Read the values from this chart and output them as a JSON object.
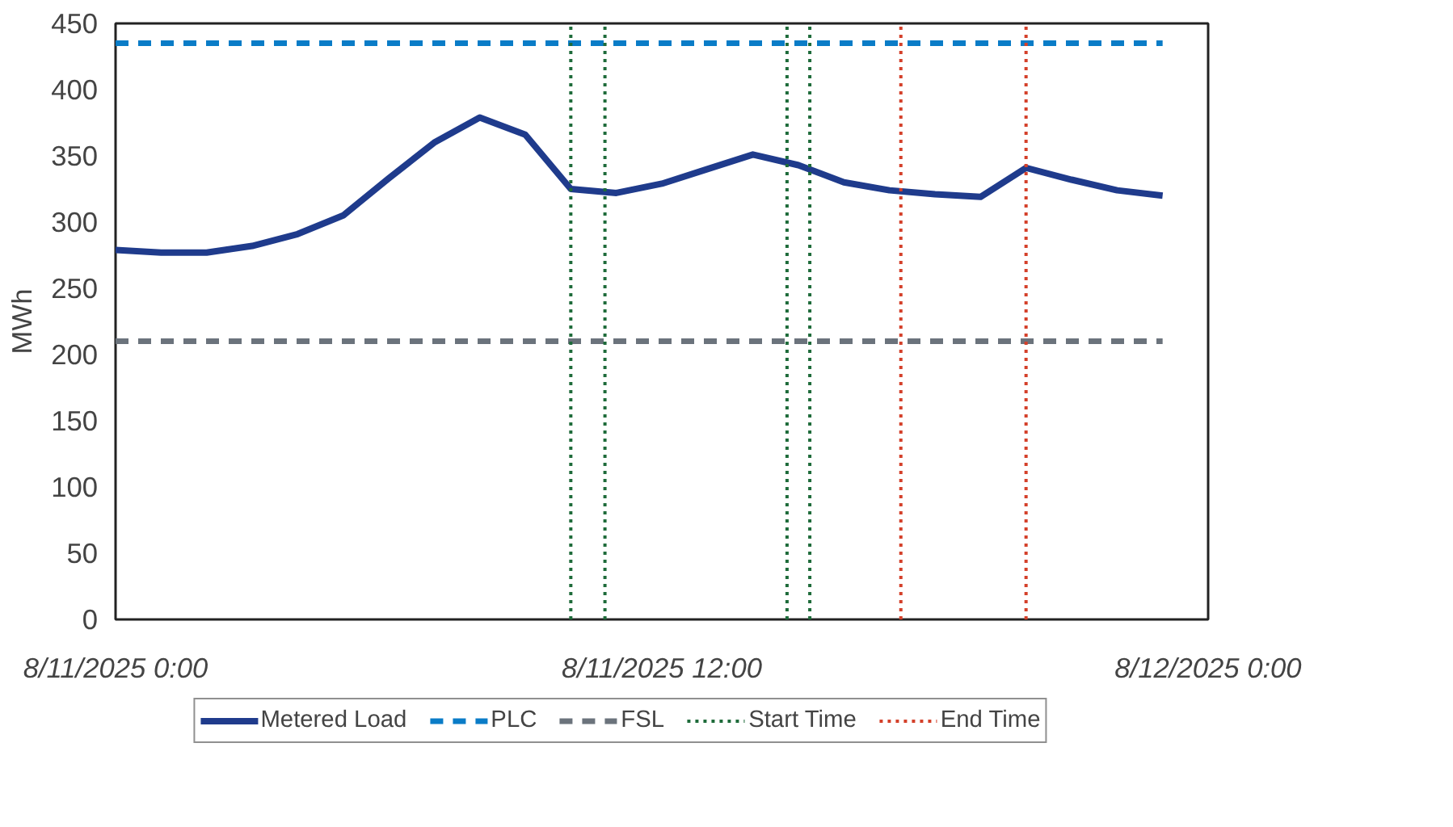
{
  "chart_data": {
    "type": "line",
    "ylabel": "MWh",
    "x": [
      "2025-08-11T00:00",
      "2025-08-11T01:00",
      "2025-08-11T02:00",
      "2025-08-11T03:00",
      "2025-08-11T04:00",
      "2025-08-11T05:00",
      "2025-08-11T06:00",
      "2025-08-11T07:00",
      "2025-08-11T08:00",
      "2025-08-11T09:00",
      "2025-08-11T10:00",
      "2025-08-11T11:00",
      "2025-08-11T12:00",
      "2025-08-11T13:00",
      "2025-08-11T14:00",
      "2025-08-11T15:00",
      "2025-08-11T16:00",
      "2025-08-11T17:00",
      "2025-08-11T18:00",
      "2025-08-11T19:00",
      "2025-08-11T20:00",
      "2025-08-11T21:00",
      "2025-08-11T22:00",
      "2025-08-11T23:00"
    ],
    "series": [
      {
        "name": "Metered Load",
        "color": "#1f3b8c",
        "line_style": "solid",
        "values": [
          279,
          277,
          277,
          282,
          291,
          305,
          333,
          360,
          379,
          366,
          325,
          322,
          329,
          340,
          351,
          343,
          330,
          324,
          321,
          319,
          341,
          332,
          324,
          320
        ]
      },
      {
        "name": "PLC",
        "color": "#0a7cc7",
        "line_style": "dashed",
        "x": [
          "2025-08-11T00:00",
          "2025-08-11T23:00"
        ],
        "values": [
          435,
          435
        ]
      },
      {
        "name": "FSL",
        "color": "#6b737c",
        "line_style": "dashed",
        "x": [
          "2025-08-11T00:00",
          "2025-08-11T23:00"
        ],
        "values": [
          210,
          210
        ]
      }
    ],
    "ref_lines": [
      {
        "axis": "x",
        "value": "2025-08-11T10:00",
        "label": "Start Time",
        "color": "#1e6b3a",
        "line_style": "dotted"
      },
      {
        "axis": "x",
        "value": "2025-08-11T10:45",
        "color": "#1e6b3a",
        "line_style": "dotted"
      },
      {
        "axis": "x",
        "value": "2025-08-11T14:45",
        "color": "#1e6b3a",
        "line_style": "dotted"
      },
      {
        "axis": "x",
        "value": "2025-08-11T15:15",
        "color": "#1e6b3a",
        "line_style": "dotted"
      },
      {
        "axis": "x",
        "value": "2025-08-11T17:15",
        "label": "End Time",
        "color": "#d4402a",
        "line_style": "dotted"
      },
      {
        "axis": "x",
        "value": "2025-08-11T20:00",
        "color": "#d4402a",
        "line_style": "dotted"
      }
    ],
    "xlim": [
      "2025-08-11T00:00",
      "2025-08-12T00:00"
    ],
    "xticks": [
      {
        "value": "2025-08-11T00:00",
        "label": "8/11/2025 0:00"
      },
      {
        "value": "2025-08-11T12:00",
        "label": "8/11/2025 12:00"
      },
      {
        "value": "2025-08-12T00:00",
        "label": "8/12/2025 0:00"
      }
    ],
    "ylim": [
      0,
      450
    ],
    "yticks": [
      0,
      50,
      100,
      150,
      200,
      250,
      300,
      350,
      400,
      450
    ],
    "grid": false,
    "legend": "bottom",
    "marker": "none"
  }
}
